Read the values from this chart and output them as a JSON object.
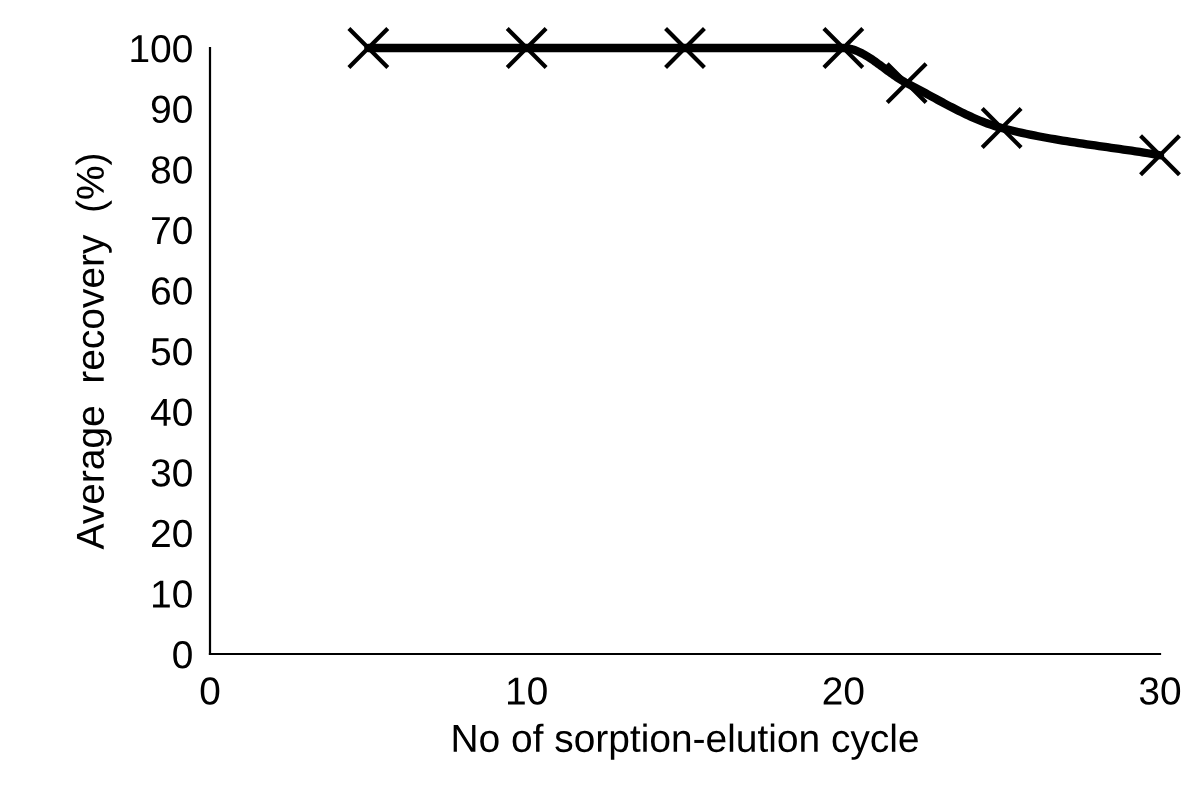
{
  "chart_data": {
    "type": "line",
    "xlabel": "No of sorption-elution cycle",
    "ylabel": "Average  recovery  (%)",
    "x": [
      5,
      10,
      15,
      20,
      22,
      25,
      30
    ],
    "series": [
      {
        "color": "#000000",
        "values": [
          100,
          100,
          100,
          100,
          94.2,
          86.8,
          82.3
        ]
      }
    ],
    "xlim": [
      0,
      30
    ],
    "xticks": [
      0,
      10,
      20,
      30
    ],
    "ylim": [
      0,
      100
    ],
    "yticks": [
      0,
      10,
      20,
      30,
      40,
      50,
      60,
      70,
      80,
      90,
      100
    ],
    "marker": "cross",
    "line_style": "solid",
    "grid": false,
    "legend": false
  }
}
